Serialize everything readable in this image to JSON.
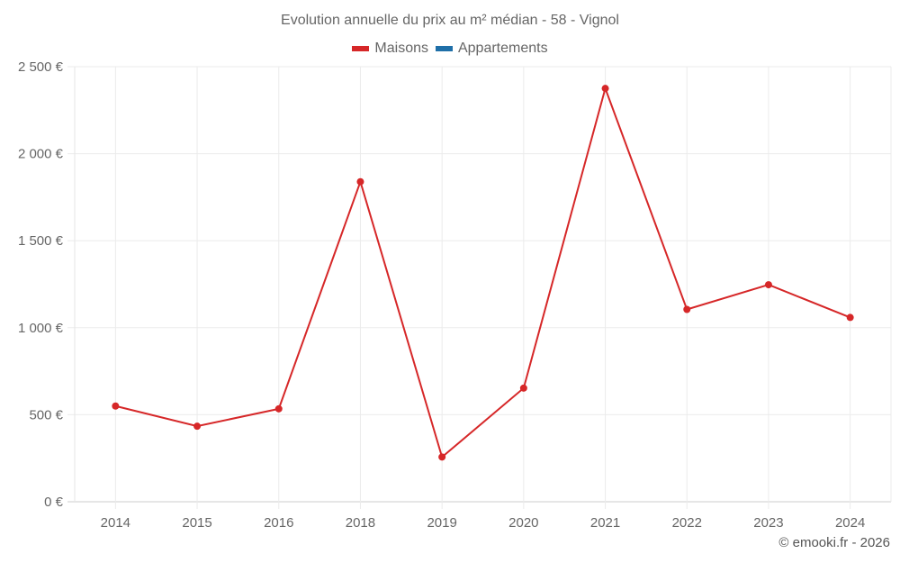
{
  "chart_data": {
    "type": "line",
    "title": "Evolution annuelle du prix au m² médian - 58 - Vignol",
    "categories": [
      "2014",
      "2015",
      "2016",
      "2018",
      "2019",
      "2020",
      "2021",
      "2022",
      "2023",
      "2024"
    ],
    "series": [
      {
        "name": "Maisons",
        "color": "#d62728",
        "values": [
          550,
          434,
          534,
          1839,
          257,
          653,
          2375,
          1105,
          1247,
          1059
        ]
      },
      {
        "name": "Appartements",
        "color": "#1f6fa8",
        "values": []
      }
    ],
    "xlabel": "",
    "ylabel": "",
    "ylim": [
      0,
      2500
    ],
    "yticks": [
      0,
      500,
      1000,
      1500,
      2000,
      2500
    ],
    "ytick_labels": [
      "0 €",
      "500 €",
      "1 000 €",
      "1 500 €",
      "2 000 €",
      "2 500 €"
    ],
    "grid": true,
    "legend_position": "top"
  },
  "header": {
    "title": "Evolution annuelle du prix au m² médian - 58 - Vignol"
  },
  "legend": {
    "items": [
      {
        "label": "Maisons",
        "color": "#d62728"
      },
      {
        "label": "Appartements",
        "color": "#1f6fa8"
      }
    ]
  },
  "footer": {
    "credit": "© emooki.fr - 2026"
  }
}
